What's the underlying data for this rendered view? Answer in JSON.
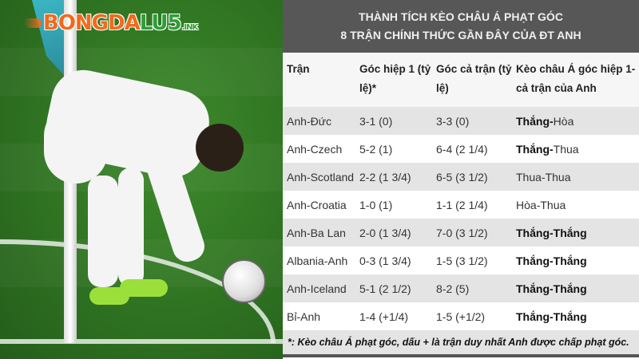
{
  "logo": {
    "text_orange": "BONGDA",
    "text_green": "LU5",
    "suffix": ".INK"
  },
  "table": {
    "title_line1": "THÀNH TÍCH KÈO CHÂU Á PHẠT GÓC",
    "title_line2": "8 TRẬN CHÍNH THỨC GẦN ĐÂY CỦA ĐT ANH",
    "headers": {
      "match": "Trận",
      "first_half": "Góc hiệp 1 (tỷ lệ)*",
      "full_match": "Góc cả trận (tỷ lệ)",
      "result": "Kèo châu Á góc hiệp 1- cả trận của Anh"
    },
    "rows": [
      {
        "match": "Anh-Đức",
        "first_half": "3-1 (0)",
        "full_match": "3-3 (0)",
        "r1": "Thắng",
        "r2": "Hòa"
      },
      {
        "match": "Anh-Czech",
        "first_half": "5-2 (1)",
        "full_match": "6-4 (2 1/4)",
        "r1": "Thắng",
        "r2": "Thua"
      },
      {
        "match": "Anh-Scotland",
        "first_half": "2-2 (1 3/4)",
        "full_match": "6-5 (3 1/2)",
        "r1": "Thua",
        "r2": "Thua"
      },
      {
        "match": "Anh-Croatia",
        "first_half": "1-0 (1)",
        "full_match": "1-1 (2 1/4)",
        "r1": "Hòa",
        "r2": "Thua"
      },
      {
        "match": "Anh-Ba Lan",
        "first_half": "2-0 (1 3/4)",
        "full_match": "7-0 (3 1/2)",
        "r1": "Thắng",
        "r2": "Thắng"
      },
      {
        "match": "Albania-Anh",
        "first_half": "0-3 (1 3/4)",
        "full_match": "1-5 (3 1/2)",
        "r1": "Thắng",
        "r2": "Thắng"
      },
      {
        "match": "Anh-Iceland",
        "first_half": "5-1 (2 1/2)",
        "full_match": "8-2 (5)",
        "r1": "Thắng",
        "r2": "Thắng"
      },
      {
        "match": "Bỉ-Anh",
        "first_half": "1-4 (+1/4)",
        "full_match": "1-5 (+1/2)",
        "r1": "Thắng",
        "r2": "Thắng"
      }
    ],
    "footnote": "*: Kèo châu Á phạt góc, dấu + là trận duy nhất Anh được chấp phạt góc."
  }
}
